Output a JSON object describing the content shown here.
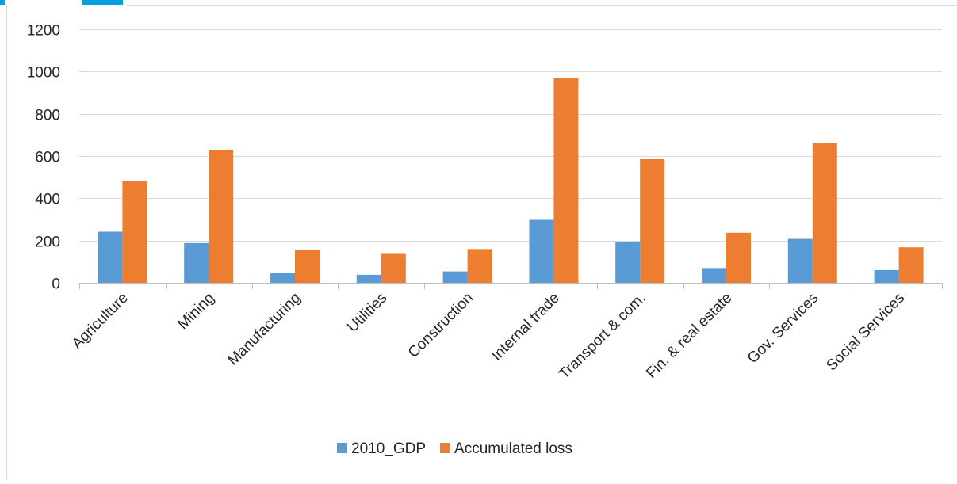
{
  "chart_data": {
    "type": "bar",
    "categories": [
      "Agriculture",
      "Mining",
      "Manufacturing",
      "Utilities",
      "Construction",
      "Internal trade",
      "Transport & com.",
      "Fin. & real estate",
      "Gov. Services",
      "Social Services"
    ],
    "series": [
      {
        "name": "2010_GDP",
        "color": "#5B9BD5",
        "values": [
          242,
          188,
          45,
          38,
          54,
          298,
          193,
          70,
          208,
          60
        ]
      },
      {
        "name": "Accumulated loss",
        "color": "#ED7D31",
        "values": [
          483,
          630,
          155,
          137,
          160,
          968,
          585,
          237,
          660,
          168
        ]
      }
    ],
    "yticks": [
      "0",
      "200",
      "400",
      "600",
      "800",
      "1000",
      "1200"
    ],
    "ylim": [
      0,
      1200
    ],
    "grid": true,
    "legend": "bottom",
    "title": "",
    "xlabel": "",
    "ylabel": ""
  },
  "colors": {
    "gridline": "#D9D9D9",
    "axis": "#BFBFBF",
    "accent_top": "#00A0DC"
  }
}
